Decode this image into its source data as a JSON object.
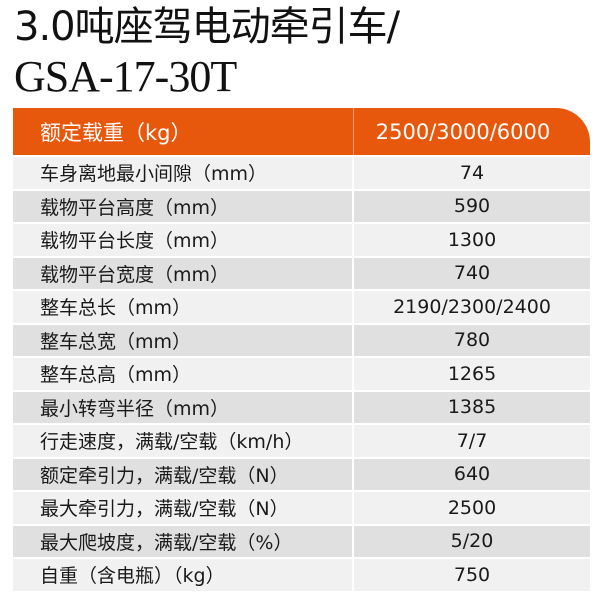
{
  "title": {
    "line1": "3.0吨座驾电动牵引车/",
    "line2": "GSA-17-30T"
  },
  "colors": {
    "header_bg": "#e8580c",
    "row_light": "#f1f1f1",
    "row_dark": "#e0e0e0"
  },
  "header": {
    "label": "额定载重（kg）",
    "value": "2500/3000/6000"
  },
  "rows": [
    {
      "label": "车身离地最小间隙（mm）",
      "value": "74"
    },
    {
      "label": "载物平台高度（mm）",
      "value": "590"
    },
    {
      "label": "载物平台长度（mm）",
      "value": "1300"
    },
    {
      "label": "载物平台宽度（mm）",
      "value": "740"
    },
    {
      "label": "整车总长（mm）",
      "value": "2190/2300/2400"
    },
    {
      "label": "整车总宽（mm）",
      "value": "780"
    },
    {
      "label": "整车总高（mm）",
      "value": "1265"
    },
    {
      "label": "最小转弯半径（mm）",
      "value": "1385"
    },
    {
      "label": "行走速度，满载/空载（km/h）",
      "value": "7/7"
    },
    {
      "label": "额定牵引力，满载/空载（N）",
      "value": "640"
    },
    {
      "label": "最大牵引力，满载/空载（N）",
      "value": "2500"
    },
    {
      "label": "最大爬坡度，满载/空载（%）",
      "value": "5/20"
    },
    {
      "label": "自重（含电瓶）（kg）",
      "value": "750"
    }
  ]
}
